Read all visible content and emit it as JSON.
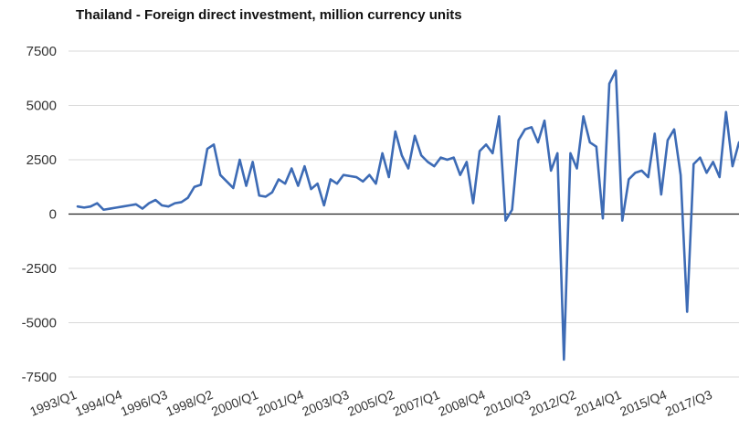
{
  "chart_data": {
    "type": "line",
    "title": "Thailand - Foreign direct investment, million currency units",
    "xlabel": "",
    "ylabel": "",
    "ylim": [
      -7500,
      7500
    ],
    "yticks": [
      "7500",
      "5000",
      "2500",
      "0",
      "-2500",
      "-5000",
      "-7500"
    ],
    "ytick_values": [
      7500,
      5000,
      2500,
      0,
      -2500,
      -5000,
      -7500
    ],
    "xtick_labels": [
      "1993/Q1",
      "1994/Q4",
      "1996/Q3",
      "1998/Q2",
      "2000/Q1",
      "2001/Q4",
      "2003/Q3",
      "2005/Q2",
      "2007/Q1",
      "2008/Q4",
      "2010/Q3",
      "2012/Q2",
      "2014/Q1",
      "2015/Q4",
      "2017/Q3"
    ],
    "grid": true,
    "legend": "none",
    "line_color": "#3d6bb5",
    "series": [
      {
        "values": [
          350,
          300,
          350,
          500,
          200,
          250,
          300,
          350,
          400,
          450,
          250,
          500,
          650,
          400,
          350,
          500,
          550,
          750,
          1250,
          1350,
          3000,
          3200,
          1800,
          1500,
          1200,
          2500,
          1300,
          2400,
          850,
          800,
          1000,
          1600,
          1400,
          2100,
          1300,
          2200,
          1150,
          1400,
          400,
          1600,
          1400,
          1800,
          1750,
          1700,
          1500,
          1800,
          1400,
          2800,
          1700,
          3800,
          2700,
          2100,
          3600,
          2700,
          2400,
          2200,
          2600,
          2500,
          2600,
          1800,
          2400,
          500,
          2900,
          3200,
          2800,
          4500,
          -300,
          200,
          3400,
          3900,
          4000,
          3300,
          4300,
          2000,
          2800,
          -6700,
          2800,
          2100,
          4500,
          3300,
          3100,
          -200,
          6000,
          6600,
          -300,
          1600,
          1900,
          2000,
          1700,
          3700,
          900,
          3400,
          3900,
          1800,
          -4500,
          2300,
          2600,
          1900,
          2400,
          1700,
          4700,
          2200,
          3300
        ]
      }
    ]
  }
}
